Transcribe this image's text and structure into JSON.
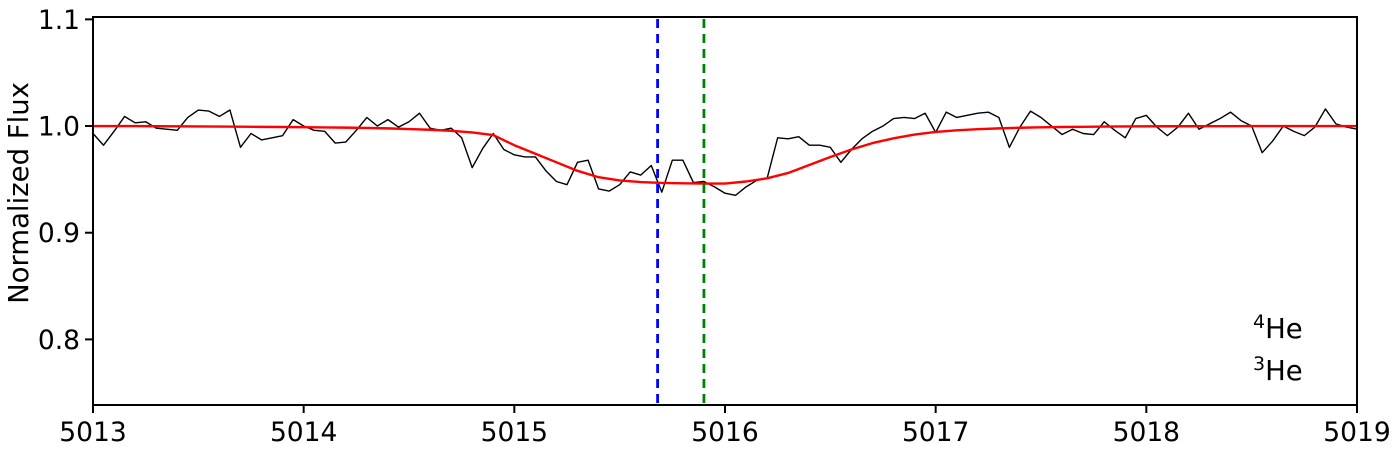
{
  "page": {
    "background": "#ffffff"
  },
  "chart_data": {
    "type": "line",
    "title": "",
    "xlabel": "",
    "ylabel": "Normalized Flux",
    "x_range": [
      5013,
      5019
    ],
    "y_range": [
      0.7385,
      1.1022
    ],
    "x_ticks": [
      5013,
      5014,
      5015,
      5016,
      5017,
      5018,
      5019
    ],
    "y_ticks": [
      {
        "value": 0.8,
        "label": "0.8"
      },
      {
        "value": 0.9,
        "label": "0.9"
      },
      {
        "value": 1.0,
        "label": "1.0"
      },
      {
        "value": 1.1,
        "label": "1.1"
      }
    ],
    "grid": false,
    "legend_position": "lower right",
    "axis_color": "#000000",
    "series": [
      {
        "name": "observed-spectrum",
        "color": "#000000",
        "line_width": 1.4,
        "line_style": "solid",
        "x_start": 5013.0,
        "x_step": 0.05,
        "values": [
          0.993,
          0.982,
          0.995,
          1.009,
          1.003,
          1.004,
          0.998,
          0.997,
          0.996,
          1.008,
          1.015,
          1.014,
          1.009,
          1.015,
          0.98,
          0.993,
          0.987,
          0.989,
          0.991,
          1.006,
          1.0,
          0.996,
          0.995,
          0.984,
          0.985,
          0.996,
          1.008,
          1.0,
          1.006,
          0.999,
          1.004,
          1.012,
          0.998,
          0.996,
          0.998,
          0.989,
          0.961,
          0.979,
          0.993,
          0.978,
          0.973,
          0.971,
          0.971,
          0.958,
          0.948,
          0.945,
          0.966,
          0.968,
          0.941,
          0.939,
          0.945,
          0.957,
          0.954,
          0.963,
          0.938,
          0.968,
          0.968,
          0.947,
          0.948,
          0.943,
          0.937,
          0.935,
          0.943,
          0.949,
          0.951,
          0.989,
          0.988,
          0.99,
          0.982,
          0.982,
          0.98,
          0.966,
          0.978,
          0.988,
          0.995,
          1.0,
          1.007,
          1.008,
          1.007,
          1.012,
          0.994,
          1.013,
          1.008,
          1.01,
          1.012,
          1.013,
          1.008,
          0.98,
          0.999,
          1.014,
          1.008,
          1.0,
          0.992,
          0.997,
          0.993,
          0.992,
          1.004,
          0.996,
          0.989,
          1.007,
          1.01,
          0.999,
          0.991,
          0.999,
          1.012,
          0.997,
          1.002,
          1.007,
          1.013,
          1.005,
          1.0,
          0.975,
          0.986,
          1.0,
          0.995,
          0.991,
          0.999,
          1.016,
          1.002,
          0.999,
          0.997
        ]
      },
      {
        "name": "model-fit",
        "color": "#ff0000",
        "line_width": 2.4,
        "line_style": "solid",
        "x_start": 5013.0,
        "x_step": 0.1,
        "values": [
          1.0,
          1.0,
          1.0,
          0.9998,
          0.9997,
          0.9996,
          0.9995,
          0.9994,
          0.9992,
          0.9991,
          0.9989,
          0.9987,
          0.9985,
          0.9982,
          0.9978,
          0.9972,
          0.9965,
          0.9955,
          0.994,
          0.9915,
          0.982,
          0.974,
          0.966,
          0.958,
          0.952,
          0.949,
          0.9475,
          0.9467,
          0.9463,
          0.9461,
          0.9461,
          0.948,
          0.951,
          0.956,
          0.9635,
          0.971,
          0.978,
          0.984,
          0.9885,
          0.992,
          0.9945,
          0.996,
          0.997,
          0.9978,
          0.9984,
          0.9988,
          0.9991,
          0.9993,
          0.9995,
          0.9996,
          0.9997,
          0.9998,
          0.9998,
          0.9999,
          0.9999,
          1.0,
          1.0,
          1.0,
          1.0,
          1.0,
          1.0
        ]
      }
    ],
    "vlines": [
      {
        "name": "he4-marker",
        "x": 5015.68,
        "color": "#0000ff",
        "line_style": "dashed",
        "line_width": 2.8
      },
      {
        "name": "he3-marker",
        "x": 5015.9,
        "color": "#008000",
        "line_style": "dashed",
        "line_width": 2.8
      }
    ],
    "legend": [
      {
        "name": "he4-label",
        "superscript": "4",
        "text": "He",
        "color": "#0000ff"
      },
      {
        "name": "he3-label",
        "superscript": "3",
        "text": "He",
        "color": "#008000"
      }
    ]
  }
}
